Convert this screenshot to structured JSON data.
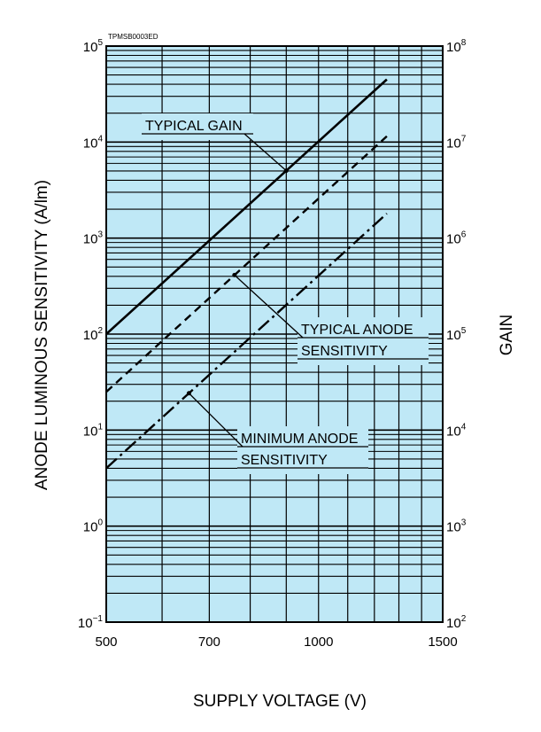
{
  "chart_data": {
    "type": "line",
    "code_label": "TPMSB0003ED",
    "xlabel": "SUPPLY VOLTAGE (V)",
    "ylabel": "ANODE LUMINOUS SENSITIVITY (A/lm)",
    "y2label": "GAIN",
    "x_scale": "log",
    "y_scale": "log",
    "xlim": [
      500,
      1500
    ],
    "ylim": [
      0.1,
      100000
    ],
    "y2lim": [
      100,
      100000000
    ],
    "grid": true,
    "plot_bg_color": "#bfe8f6",
    "x_ticks": [
      {
        "value": 500,
        "label": "500"
      },
      {
        "value": 700,
        "label": "700"
      },
      {
        "value": 1000,
        "label": "1000"
      },
      {
        "value": 1500,
        "label": "1500"
      }
    ],
    "y_ticks": [
      {
        "base": "10",
        "exp": "−1",
        "value": 0.1
      },
      {
        "base": "10",
        "exp": "0",
        "value": 1
      },
      {
        "base": "10",
        "exp": "1",
        "value": 10
      },
      {
        "base": "10",
        "exp": "2",
        "value": 100
      },
      {
        "base": "10",
        "exp": "3",
        "value": 1000
      },
      {
        "base": "10",
        "exp": "4",
        "value": 10000
      },
      {
        "base": "10",
        "exp": "5",
        "value": 100000
      }
    ],
    "y2_ticks": [
      {
        "base": "10",
        "exp": "2",
        "value": 100
      },
      {
        "base": "10",
        "exp": "3",
        "value": 1000
      },
      {
        "base": "10",
        "exp": "4",
        "value": 10000
      },
      {
        "base": "10",
        "exp": "5",
        "value": 100000
      },
      {
        "base": "10",
        "exp": "6",
        "value": 1000000
      },
      {
        "base": "10",
        "exp": "7",
        "value": 10000000
      },
      {
        "base": "10",
        "exp": "8",
        "value": 100000000
      }
    ],
    "series": [
      {
        "name": "TYPICAL GAIN",
        "axis": "y2",
        "dash": "solid",
        "x": [
          500,
          1250
        ],
        "y": [
          100000,
          45000000
        ]
      },
      {
        "name": "TYPICAL ANODE SENSITIVITY",
        "axis": "y",
        "dash": "dashed",
        "x": [
          500,
          1250
        ],
        "y": [
          25,
          11500
        ]
      },
      {
        "name": "MINIMUM ANODE SENSITIVITY",
        "axis": "y",
        "dash": "dashdot",
        "x": [
          500,
          1250
        ],
        "y": [
          4,
          1800
        ]
      }
    ],
    "annotations": [
      {
        "lines": [
          "TYPICAL GAIN"
        ],
        "series": 0,
        "x": 900
      },
      {
        "lines": [
          "TYPICAL ANODE",
          "SENSITIVITY"
        ],
        "series": 1,
        "x": 760
      },
      {
        "lines": [
          "MINIMUM ANODE",
          "SENSITIVITY"
        ],
        "series": 2,
        "x": 655
      }
    ]
  }
}
